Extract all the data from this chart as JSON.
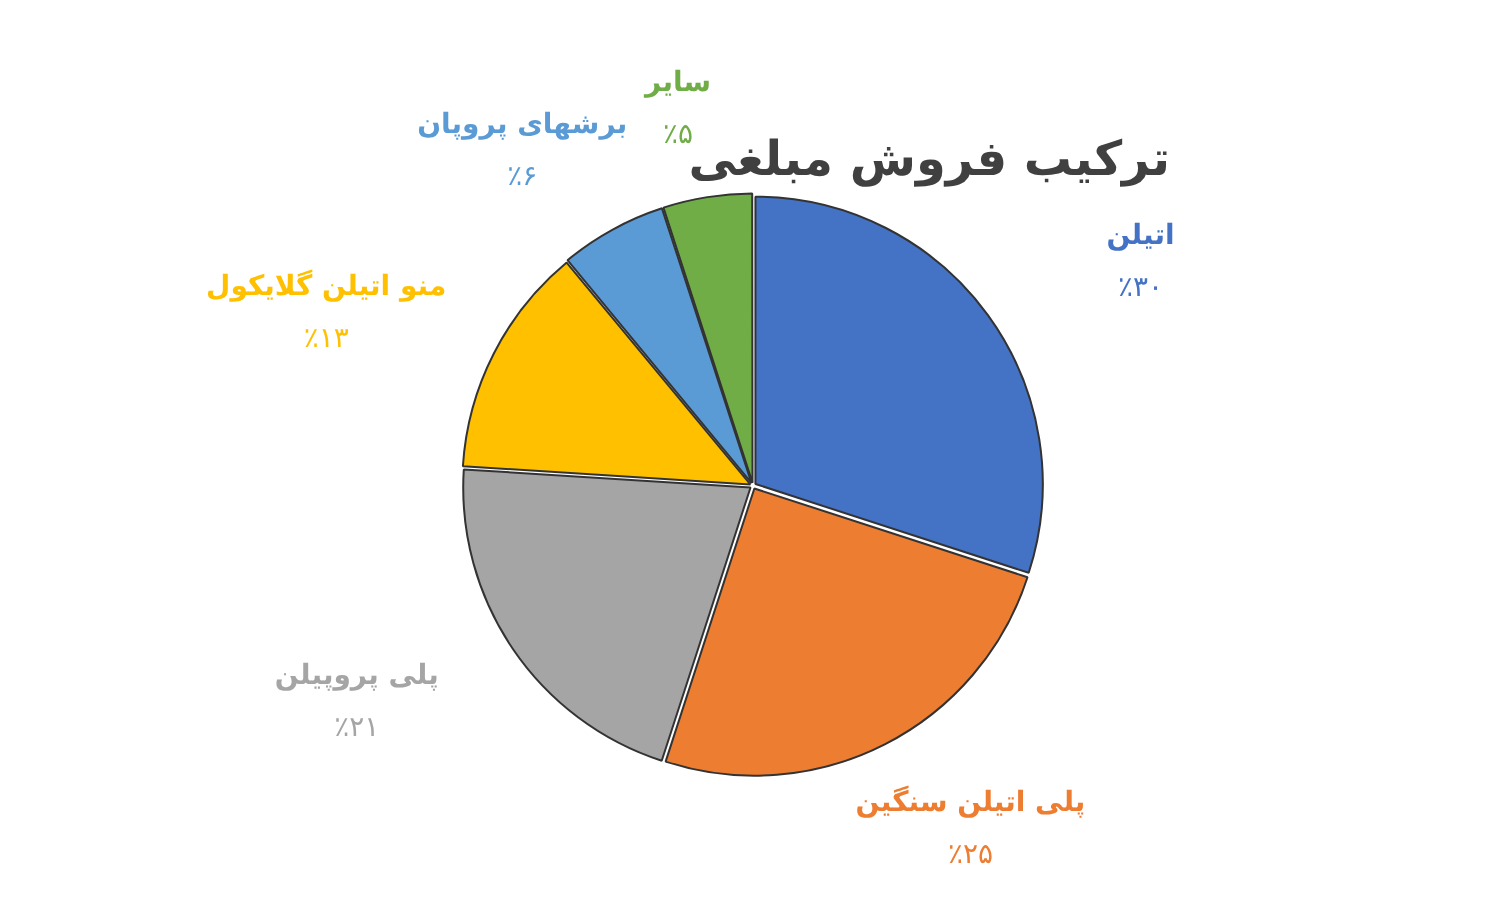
{
  "chart_data": {
    "type": "pie",
    "title": "ترکیب فروش مبلغی",
    "categories": [
      "اتیلن",
      "پلی اتیلن سنگین",
      "پلی پروپیلن",
      "منو اتیلن گلایکول",
      "برشهای پروپان",
      "سایر"
    ],
    "values": [
      30,
      25,
      21,
      13,
      6,
      5
    ],
    "value_labels": [
      "٪۳۰",
      "٪۲۵",
      "٪۲۱",
      "٪۱۳",
      "٪۶",
      "٪۵"
    ],
    "colors": [
      "#4472c4",
      "#ed7d31",
      "#a5a5a5",
      "#ffc000",
      "#5b9bd5",
      "#70ad47"
    ],
    "legend": false
  }
}
